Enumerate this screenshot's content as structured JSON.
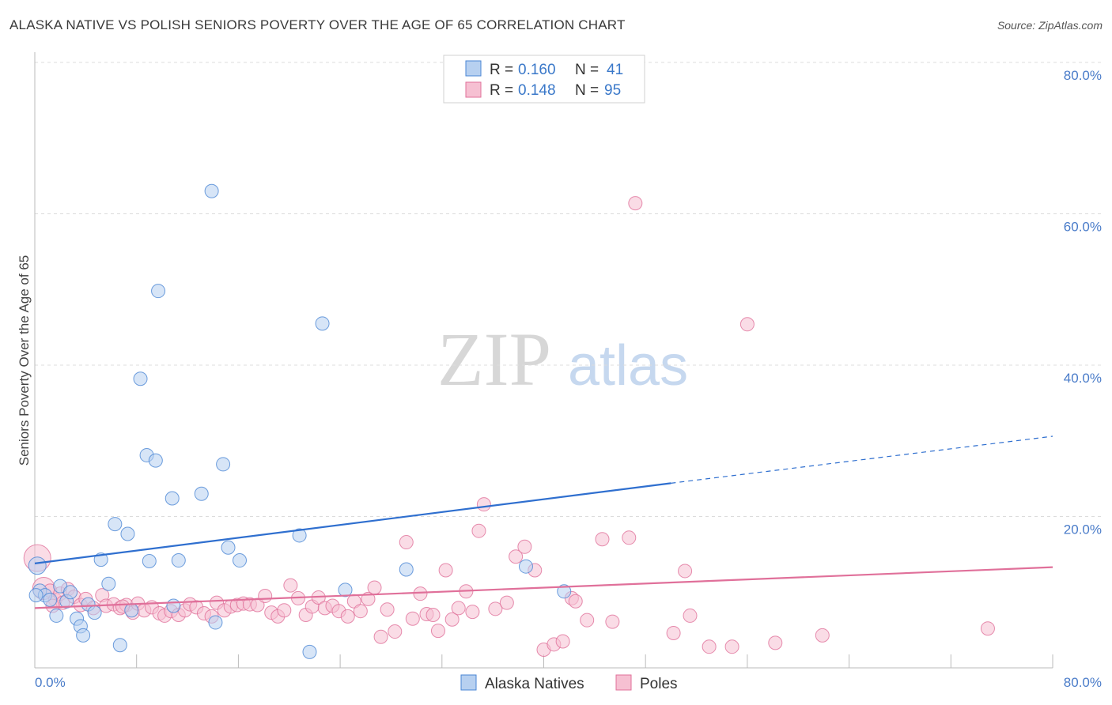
{
  "title": "ALASKA NATIVE VS POLISH SENIORS POVERTY OVER THE AGE OF 65 CORRELATION CHART",
  "source": "Source: ZipAtlas.com",
  "watermark": {
    "zip": "ZIP",
    "atlas": "atlas"
  },
  "colors": {
    "blue": "#4a86d4",
    "blue_fill": "#b7d0f0",
    "pink": "#e0709a",
    "pink_fill": "#f6c0d2",
    "tick": "#4a7cc9"
  },
  "chart_data": {
    "type": "scatter",
    "title": "ALASKA NATIVE VS POLISH SENIORS POVERTY OVER THE AGE OF 65 CORRELATION CHART",
    "xlabel": "",
    "ylabel": "Seniors Poverty Over the Age of 65",
    "xlim": [
      0,
      80
    ],
    "ylim": [
      0,
      80
    ],
    "x_tick_labels": [
      "0.0%",
      "80.0%"
    ],
    "y_tick_labels": [
      "20.0%",
      "40.0%",
      "60.0%",
      "80.0%"
    ],
    "y_ticks": [
      20,
      40,
      60,
      80
    ],
    "legend": [
      {
        "r_label": "R =",
        "r": "0.160",
        "n_label": "N =",
        "n": "41"
      },
      {
        "r_label": "R =",
        "r": "0.148",
        "n_label": "N =",
        "n": "95"
      }
    ],
    "series": [
      {
        "name": "Alaska Natives",
        "trend": {
          "x0": 0,
          "y0": 13.8,
          "x1": 50,
          "y1": 24.4,
          "x_end": 80,
          "y_end": 30.6
        },
        "points": [
          [
            0.2,
            13.5
          ],
          [
            0.4,
            10.2
          ],
          [
            0.8,
            9.6
          ],
          [
            1.2,
            9.0
          ],
          [
            1.7,
            6.9
          ],
          [
            2.0,
            10.8
          ],
          [
            2.5,
            8.8
          ],
          [
            2.8,
            10.0
          ],
          [
            3.3,
            6.5
          ],
          [
            3.6,
            5.5
          ],
          [
            3.8,
            4.3
          ],
          [
            4.2,
            8.4
          ],
          [
            4.7,
            7.3
          ],
          [
            5.2,
            14.3
          ],
          [
            5.8,
            11.1
          ],
          [
            6.3,
            19.0
          ],
          [
            6.7,
            3.0
          ],
          [
            7.3,
            17.7
          ],
          [
            7.6,
            7.6
          ],
          [
            8.3,
            38.2
          ],
          [
            8.8,
            28.1
          ],
          [
            9.0,
            14.1
          ],
          [
            9.5,
            27.4
          ],
          [
            9.7,
            49.8
          ],
          [
            10.8,
            22.4
          ],
          [
            10.9,
            8.2
          ],
          [
            11.3,
            14.2
          ],
          [
            13.1,
            23.0
          ],
          [
            13.9,
            63.0
          ],
          [
            14.2,
            6.0
          ],
          [
            14.8,
            26.9
          ],
          [
            15.2,
            15.9
          ],
          [
            16.1,
            14.2
          ],
          [
            20.8,
            17.5
          ],
          [
            21.6,
            2.1
          ],
          [
            22.6,
            45.5
          ],
          [
            24.4,
            10.3
          ],
          [
            29.2,
            13.0
          ],
          [
            38.6,
            13.4
          ],
          [
            41.6,
            10.1
          ],
          [
            0.1,
            9.6
          ]
        ]
      },
      {
        "name": "Poles",
        "trend": {
          "x0": 0,
          "y0": 7.9,
          "x1": 80,
          "y1": 13.3
        },
        "points": [
          [
            0.2,
            14.5
          ],
          [
            0.7,
            10.5
          ],
          [
            1.2,
            10.2
          ],
          [
            1.6,
            9.0
          ],
          [
            2.0,
            9.8
          ],
          [
            2.2,
            8.6
          ],
          [
            2.6,
            10.4
          ],
          [
            3.1,
            9.4
          ],
          [
            3.6,
            8.3
          ],
          [
            4.0,
            9.1
          ],
          [
            4.6,
            7.9
          ],
          [
            5.3,
            9.6
          ],
          [
            5.6,
            8.2
          ],
          [
            6.2,
            8.4
          ],
          [
            6.7,
            7.9
          ],
          [
            7.2,
            8.3
          ],
          [
            7.7,
            7.3
          ],
          [
            8.1,
            8.5
          ],
          [
            8.6,
            7.6
          ],
          [
            9.2,
            8.0
          ],
          [
            9.8,
            7.2
          ],
          [
            10.2,
            6.9
          ],
          [
            10.7,
            7.5
          ],
          [
            11.3,
            7.0
          ],
          [
            11.8,
            7.6
          ],
          [
            12.2,
            8.4
          ],
          [
            12.7,
            8.0
          ],
          [
            13.3,
            7.2
          ],
          [
            13.9,
            6.8
          ],
          [
            14.3,
            8.6
          ],
          [
            14.9,
            7.6
          ],
          [
            15.4,
            8.1
          ],
          [
            15.9,
            8.3
          ],
          [
            16.4,
            8.5
          ],
          [
            16.9,
            8.4
          ],
          [
            17.5,
            8.3
          ],
          [
            18.1,
            9.5
          ],
          [
            18.6,
            7.3
          ],
          [
            19.1,
            6.8
          ],
          [
            19.6,
            7.6
          ],
          [
            20.1,
            10.9
          ],
          [
            20.7,
            9.2
          ],
          [
            21.3,
            7.0
          ],
          [
            21.8,
            8.1
          ],
          [
            22.3,
            9.3
          ],
          [
            22.8,
            7.9
          ],
          [
            23.4,
            8.2
          ],
          [
            23.9,
            7.5
          ],
          [
            24.6,
            6.8
          ],
          [
            25.1,
            8.8
          ],
          [
            25.6,
            7.5
          ],
          [
            26.2,
            9.1
          ],
          [
            26.7,
            10.6
          ],
          [
            27.2,
            4.1
          ],
          [
            27.7,
            7.7
          ],
          [
            28.3,
            4.8
          ],
          [
            29.2,
            16.6
          ],
          [
            29.7,
            6.5
          ],
          [
            30.3,
            9.8
          ],
          [
            30.8,
            7.1
          ],
          [
            31.3,
            7.0
          ],
          [
            31.7,
            4.9
          ],
          [
            32.3,
            12.9
          ],
          [
            32.8,
            6.4
          ],
          [
            33.3,
            7.9
          ],
          [
            33.9,
            10.1
          ],
          [
            34.4,
            7.4
          ],
          [
            34.9,
            18.1
          ],
          [
            35.3,
            21.6
          ],
          [
            36.2,
            7.8
          ],
          [
            37.1,
            8.6
          ],
          [
            37.8,
            14.7
          ],
          [
            38.5,
            16.0
          ],
          [
            39.3,
            12.9
          ],
          [
            40.0,
            2.4
          ],
          [
            40.8,
            3.1
          ],
          [
            41.5,
            3.5
          ],
          [
            42.2,
            9.2
          ],
          [
            42.5,
            8.8
          ],
          [
            43.4,
            6.3
          ],
          [
            44.6,
            17.0
          ],
          [
            45.4,
            6.1
          ],
          [
            46.7,
            17.2
          ],
          [
            47.2,
            61.4
          ],
          [
            50.2,
            4.6
          ],
          [
            51.1,
            12.8
          ],
          [
            51.5,
            6.9
          ],
          [
            53.0,
            2.8
          ],
          [
            54.8,
            2.8
          ],
          [
            56.0,
            45.4
          ],
          [
            58.2,
            3.3
          ],
          [
            61.9,
            4.3
          ],
          [
            74.9,
            5.2
          ],
          [
            1.4,
            8.2
          ],
          [
            6.9,
            8.1
          ]
        ]
      }
    ]
  },
  "bottom_legend": [
    {
      "label": "Alaska Natives"
    },
    {
      "label": "Poles"
    }
  ]
}
